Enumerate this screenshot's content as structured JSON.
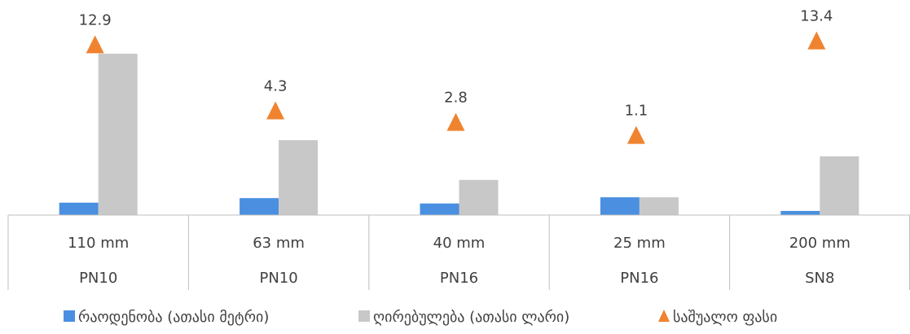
{
  "chart_data": {
    "type": "bar",
    "categories": [
      [
        "110 mm",
        "PN10"
      ],
      [
        "63 mm",
        "PN10"
      ],
      [
        "40 mm",
        "PN16"
      ],
      [
        "25 mm",
        "PN16"
      ],
      [
        "200 mm",
        "SN8"
      ]
    ],
    "series": [
      {
        "name": "რაოდენობა (ათასი მეტრი)",
        "kind": "bar",
        "color": "#4a8fe0",
        "values": [
          3.0,
          4.1,
          2.8,
          4.3,
          1.0
        ]
      },
      {
        "name": "ღირებულება (ათასი ლარი)",
        "kind": "bar",
        "color": "#c8c8c8",
        "values": [
          39.0,
          18.1,
          8.5,
          4.3,
          14.2
        ]
      },
      {
        "name": "საშუალო ფასი",
        "kind": "marker",
        "marker": "triangle",
        "color": "#f08330",
        "values": [
          12.9,
          4.3,
          2.8,
          1.1,
          13.4
        ],
        "label_decimals": 1
      }
    ],
    "ylim": [
      0,
      50
    ],
    "axis_visible": false,
    "grid": false,
    "legend": "bottom"
  }
}
